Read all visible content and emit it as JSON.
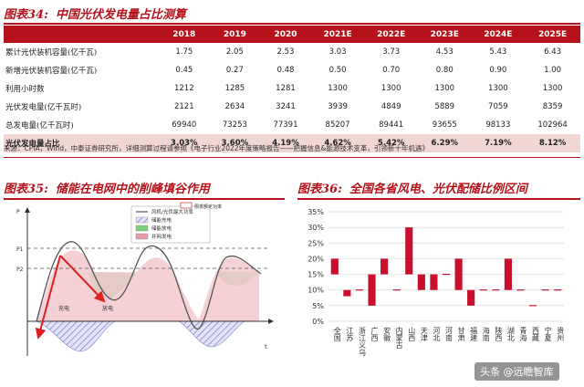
{
  "fig34": {
    "label": "图表34:",
    "title": "中国光伏发电量占比测算",
    "columns": [
      "2018",
      "2019",
      "2020",
      "2021E",
      "2022E",
      "2023E",
      "2024E",
      "2025E"
    ],
    "rows": [
      {
        "label": "累计光伏装机容量(亿千瓦)",
        "values": [
          "1.75",
          "2.05",
          "2.53",
          "3.03",
          "3.73",
          "4.53",
          "5.43",
          "6.43"
        ]
      },
      {
        "label": "新增光伏装机容量(亿千瓦)",
        "values": [
          "0.45",
          "0.27",
          "0.48",
          "0.50",
          "0.70",
          "0.80",
          "0.90",
          "1.00"
        ]
      },
      {
        "label": "利用小时数",
        "values": [
          "1212",
          "1285",
          "1281",
          "1300",
          "1300",
          "1300",
          "1300",
          "1300"
        ]
      },
      {
        "label": "光伏发电量(亿千瓦时)",
        "values": [
          "2121",
          "2634",
          "3241",
          "3939",
          "4849",
          "5889",
          "7059",
          "8359"
        ]
      },
      {
        "label": "总发电量(亿千瓦时)",
        "values": [
          "69940",
          "73253",
          "77391",
          "85207",
          "89441",
          "93655",
          "98133",
          "102964"
        ]
      },
      {
        "label": "光伏发电量占比",
        "values": [
          "3.03%",
          "3.60%",
          "4.19%",
          "4.62%",
          "5.42%",
          "6.29%",
          "7.19%",
          "8.12%"
        ]
      }
    ],
    "source": "来源：CPIA，Wind，中泰证券研究所，详细测算过程请参照《电子行业2022年度策略报告——把握信息&能源技术变革，引领新十年机遇》"
  },
  "fig35": {
    "label": "图表35:",
    "title": "储能在电网中的削峰填谷作用",
    "y_axis_label": "P",
    "x_axis_label": "t",
    "p1": "P1",
    "p2": "P2",
    "legend_top": [
      {
        "name": "风机/光伏最大功率",
        "color": "#555555"
      },
      {
        "name": "储能充电",
        "color": "#7f7fd0"
      },
      {
        "name": "储能放电",
        "color": "#7ccf7c"
      },
      {
        "name": "并网发电",
        "color": "#e89aa6"
      }
    ],
    "legend_side": "限发额定功率",
    "annot_charge": "充电",
    "annot_discharge": "放电"
  },
  "fig36": {
    "label": "图表36:",
    "title": "全国各省风电、光伏配储比例区间",
    "chart_data": {
      "type": "bar",
      "ylim": [
        0,
        35
      ],
      "yticks": [
        "0%",
        "5%",
        "10%",
        "15%",
        "20%",
        "25%",
        "30%",
        "35%"
      ],
      "categories": [
        "全国",
        "江苏",
        "浙江义乌",
        "广西",
        "安徽",
        "内蒙古",
        "山西",
        "天津",
        "河北",
        "河南",
        "甘肃",
        "福建",
        "海南",
        "陕西",
        "湖北",
        "青海",
        "西藏",
        "宁夏",
        "贵州"
      ],
      "ranges": [
        [
          15,
          20
        ],
        [
          8,
          10
        ],
        [
          10,
          10
        ],
        [
          5,
          15
        ],
        [
          15,
          20
        ],
        [
          10,
          10
        ],
        [
          15,
          30
        ],
        [
          10,
          15
        ],
        [
          10,
          15
        ],
        [
          15,
          15
        ],
        [
          10,
          20
        ],
        [
          5,
          10
        ],
        [
          10,
          10
        ],
        [
          10,
          10
        ],
        [
          10,
          20
        ],
        [
          10,
          10
        ],
        [
          5,
          5
        ],
        [
          10,
          10
        ],
        [
          10,
          10
        ]
      ],
      "bar_color": "#c8102e"
    }
  },
  "watermark": "头条 @远瞻智库"
}
